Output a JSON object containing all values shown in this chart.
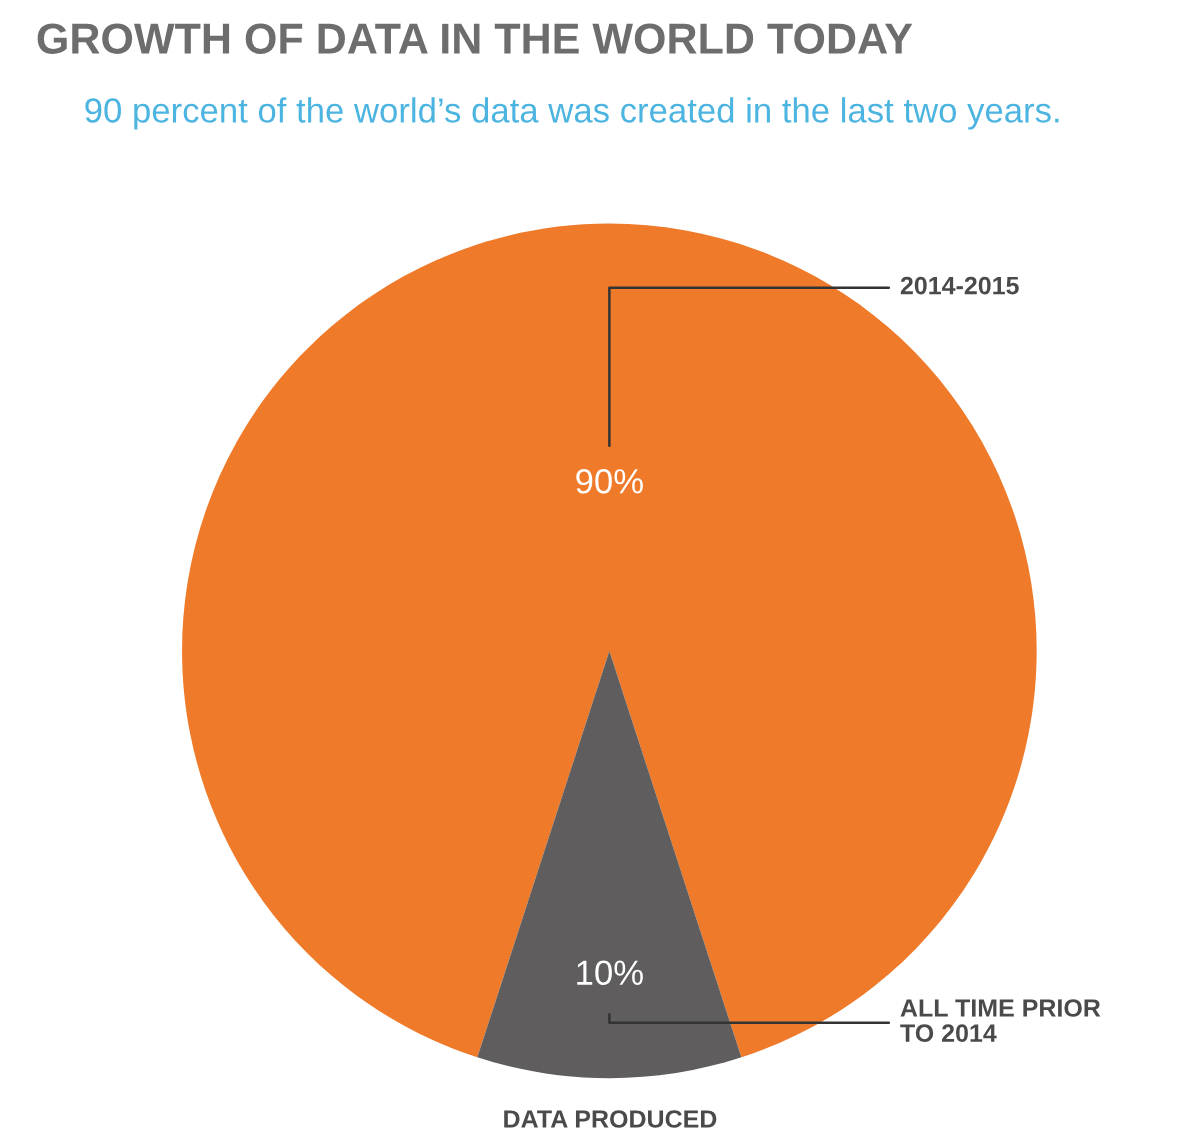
{
  "chart_data": {
    "type": "pie",
    "title": "GROWTH OF DATA IN THE WORLD TODAY",
    "subtitle": "90 percent of the world’s data was created in the last two years.",
    "categories": [
      "2014-2015",
      "ALL TIME PRIOR TO 2014"
    ],
    "values": [
      90,
      10
    ],
    "colors": [
      "#ee7a2a",
      "#5f5d5d"
    ],
    "value_labels": [
      "90%",
      "10%"
    ],
    "annotations": [
      "DATA PRODUCED"
    ]
  }
}
